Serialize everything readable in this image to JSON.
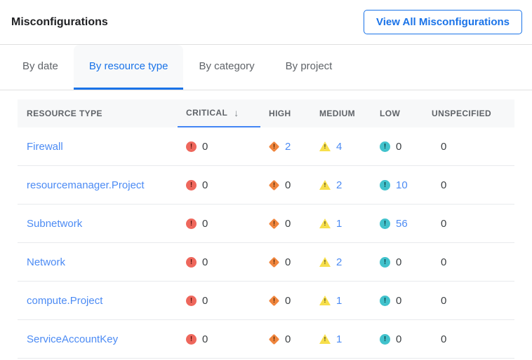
{
  "header": {
    "title": "Misconfigurations",
    "view_all_button": "View All Misconfigurations"
  },
  "tabs": [
    {
      "label": "By date",
      "active": false
    },
    {
      "label": "By resource type",
      "active": true
    },
    {
      "label": "By category",
      "active": false
    },
    {
      "label": "By project",
      "active": false
    }
  ],
  "table": {
    "columns": [
      "RESOURCE TYPE",
      "CRITICAL",
      "HIGH",
      "MEDIUM",
      "LOW",
      "UNSPECIFIED"
    ],
    "sorted_column": "CRITICAL",
    "sort_direction": "descending",
    "sort_indicator": "↓",
    "severity_glyph": "!",
    "rows": [
      {
        "resource_type": "Firewall",
        "critical": 0,
        "high": 2,
        "medium": 4,
        "low": 0,
        "unspecified": 0
      },
      {
        "resource_type": "resourcemanager.Project",
        "critical": 0,
        "high": 0,
        "medium": 2,
        "low": 10,
        "unspecified": 0
      },
      {
        "resource_type": "Subnetwork",
        "critical": 0,
        "high": 0,
        "medium": 1,
        "low": 56,
        "unspecified": 0
      },
      {
        "resource_type": "Network",
        "critical": 0,
        "high": 0,
        "medium": 2,
        "low": 0,
        "unspecified": 0
      },
      {
        "resource_type": "compute.Project",
        "critical": 0,
        "high": 0,
        "medium": 1,
        "low": 0,
        "unspecified": 0
      },
      {
        "resource_type": "ServiceAccountKey",
        "critical": 0,
        "high": 0,
        "medium": 1,
        "low": 0,
        "unspecified": 0
      }
    ]
  },
  "icons": {
    "critical": "critical-octagon-exclamation-icon",
    "high": "high-diamond-exclamation-icon",
    "medium": "medium-triangle-exclamation-icon",
    "low": "low-circle-exclamation-icon",
    "sort": "arrow-down-icon"
  },
  "colors": {
    "accent": "#1A73E8",
    "link": "#4C8BF4",
    "sort_underline": "#4285F4",
    "critical": "#EE675C",
    "high": "#F0853D",
    "medium": "#F7DF4B",
    "low": "#41C2CC",
    "header_bg": "#F7F8F9",
    "zero_text": "#3C4043"
  }
}
